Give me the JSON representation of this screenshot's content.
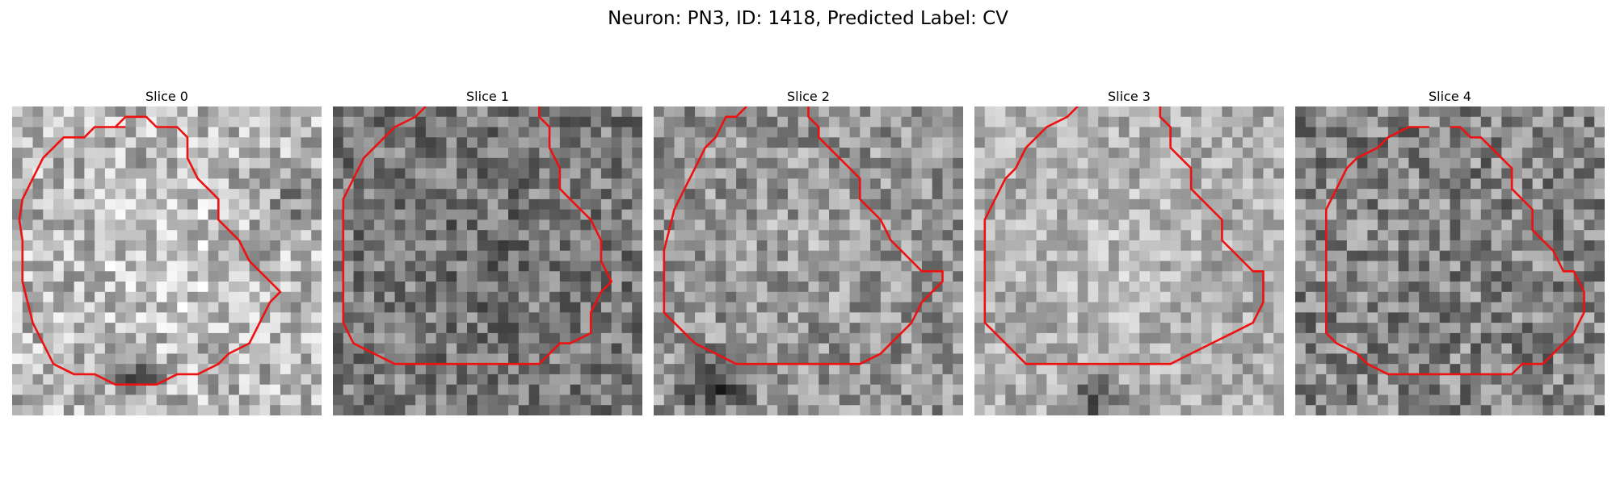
{
  "title": "Neuron: PN3, ID: 1418, Predicted Label: CV",
  "contour_color": "#ee1111",
  "panels": [
    {
      "label": "Slice 0",
      "brightness": 0.72,
      "contrast": 0.24,
      "seed": 11,
      "blobs": [
        [
          0.5,
          0.52,
          0.3,
          0.1
        ],
        [
          0.4,
          0.88,
          0.1,
          -0.45
        ],
        [
          0.92,
          0.3,
          0.18,
          -0.2
        ]
      ],
      "contour": [
        [
          11,
          2
        ],
        [
          8,
          2
        ],
        [
          7,
          3
        ],
        [
          5,
          3
        ],
        [
          4,
          4
        ],
        [
          3,
          5
        ],
        [
          2,
          7
        ],
        [
          1,
          9
        ],
        [
          0.7,
          11
        ],
        [
          1,
          13
        ],
        [
          1,
          15
        ],
        [
          1,
          17
        ],
        [
          1.5,
          19
        ],
        [
          2,
          21
        ],
        [
          3,
          23
        ],
        [
          4,
          25
        ],
        [
          6,
          26
        ],
        [
          8,
          26
        ],
        [
          10,
          27
        ],
        [
          12,
          27
        ],
        [
          14,
          27
        ],
        [
          16,
          26
        ],
        [
          18,
          26
        ],
        [
          20,
          25
        ],
        [
          21,
          24
        ],
        [
          23,
          23
        ],
        [
          24,
          21
        ],
        [
          25,
          19
        ],
        [
          26,
          18
        ],
        [
          25,
          17
        ],
        [
          24,
          16
        ],
        [
          23,
          15
        ],
        [
          22,
          13
        ],
        [
          21,
          12
        ],
        [
          20,
          11
        ],
        [
          20,
          9
        ],
        [
          19,
          8
        ],
        [
          18,
          7
        ],
        [
          17,
          5
        ],
        [
          17,
          3
        ],
        [
          16,
          2
        ],
        [
          14,
          2
        ],
        [
          13,
          1
        ],
        [
          11,
          1
        ],
        [
          10,
          2
        ]
      ]
    },
    {
      "label": "Slice 1",
      "brightness": 0.48,
      "contrast": 0.22,
      "seed": 23,
      "blobs": [
        [
          0.5,
          0.5,
          0.35,
          -0.05
        ]
      ],
      "contour": [
        [
          9,
          0
        ],
        [
          8,
          1
        ],
        [
          6,
          2
        ],
        [
          5,
          3
        ],
        [
          4,
          4
        ],
        [
          3,
          5
        ],
        [
          2,
          7
        ],
        [
          1,
          9
        ],
        [
          1,
          11
        ],
        [
          1,
          13
        ],
        [
          1,
          15
        ],
        [
          1,
          17
        ],
        [
          1,
          19
        ],
        [
          1,
          21
        ],
        [
          2,
          23
        ],
        [
          4,
          24
        ],
        [
          6,
          25
        ],
        [
          8,
          25
        ],
        [
          10,
          25
        ],
        [
          12,
          25
        ],
        [
          14,
          25
        ],
        [
          16,
          25
        ],
        [
          18,
          25
        ],
        [
          20,
          25
        ],
        [
          21,
          24
        ],
        [
          22,
          23
        ],
        [
          23,
          23
        ],
        [
          25,
          22
        ],
        [
          25,
          20
        ],
        [
          26,
          18
        ],
        [
          27,
          17
        ],
        [
          26,
          15
        ],
        [
          26,
          13
        ],
        [
          25,
          11
        ],
        [
          24,
          10
        ],
        [
          23,
          9
        ],
        [
          22,
          8
        ],
        [
          22,
          6
        ],
        [
          21,
          4
        ],
        [
          21,
          2
        ],
        [
          20,
          1
        ],
        [
          20,
          0
        ]
      ]
    },
    {
      "label": "Slice 2",
      "brightness": 0.58,
      "contrast": 0.22,
      "seed": 37,
      "blobs": [
        [
          0.52,
          0.45,
          0.35,
          0.06
        ],
        [
          0.2,
          0.9,
          0.15,
          -0.35
        ]
      ],
      "contour": [
        [
          9,
          0
        ],
        [
          8,
          1
        ],
        [
          7,
          1
        ],
        [
          6,
          3
        ],
        [
          5,
          4
        ],
        [
          4,
          6
        ],
        [
          3,
          8
        ],
        [
          2,
          10
        ],
        [
          1.5,
          12
        ],
        [
          1,
          14
        ],
        [
          1,
          16
        ],
        [
          1,
          18
        ],
        [
          1,
          20
        ],
        [
          2,
          21
        ],
        [
          4,
          23
        ],
        [
          6,
          24
        ],
        [
          8,
          25
        ],
        [
          10,
          25
        ],
        [
          12,
          25
        ],
        [
          14,
          25
        ],
        [
          16,
          25
        ],
        [
          18,
          25
        ],
        [
          20,
          25
        ],
        [
          22,
          24
        ],
        [
          23,
          23
        ],
        [
          24,
          22
        ],
        [
          25,
          21
        ],
        [
          26,
          19
        ],
        [
          27,
          18
        ],
        [
          28,
          17
        ],
        [
          28,
          16
        ],
        [
          26,
          16
        ],
        [
          25,
          15
        ],
        [
          24,
          14
        ],
        [
          23,
          13
        ],
        [
          22,
          11
        ],
        [
          21,
          10
        ],
        [
          20,
          9
        ],
        [
          20,
          7
        ],
        [
          19,
          6
        ],
        [
          18,
          5
        ],
        [
          17,
          4
        ],
        [
          16,
          3
        ],
        [
          16,
          2
        ],
        [
          15,
          1
        ],
        [
          15,
          0
        ]
      ]
    },
    {
      "label": "Slice 3",
      "brightness": 0.68,
      "contrast": 0.18,
      "seed": 51,
      "blobs": [
        [
          0.48,
          0.5,
          0.35,
          0.06
        ],
        [
          0.4,
          0.95,
          0.12,
          -0.4
        ]
      ],
      "contour": [
        [
          10,
          0
        ],
        [
          9,
          1
        ],
        [
          7,
          2
        ],
        [
          6,
          3
        ],
        [
          5,
          4
        ],
        [
          4,
          6
        ],
        [
          3,
          7
        ],
        [
          2,
          9
        ],
        [
          1,
          11
        ],
        [
          1,
          13
        ],
        [
          1,
          15
        ],
        [
          1,
          17
        ],
        [
          1,
          19
        ],
        [
          1,
          21
        ],
        [
          3,
          23
        ],
        [
          5,
          25
        ],
        [
          7,
          25
        ],
        [
          9,
          25
        ],
        [
          11,
          25
        ],
        [
          13,
          25
        ],
        [
          15,
          25
        ],
        [
          17,
          25
        ],
        [
          19,
          25
        ],
        [
          21,
          24
        ],
        [
          23,
          23
        ],
        [
          25,
          22
        ],
        [
          27,
          21
        ],
        [
          28,
          19
        ],
        [
          28,
          17
        ],
        [
          28,
          16
        ],
        [
          27,
          16
        ],
        [
          26,
          15
        ],
        [
          25,
          14
        ],
        [
          24,
          13
        ],
        [
          24,
          11
        ],
        [
          23,
          10
        ],
        [
          22,
          9
        ],
        [
          21,
          8
        ],
        [
          21,
          6
        ],
        [
          20,
          5
        ],
        [
          19,
          4
        ],
        [
          19,
          2
        ],
        [
          18,
          1
        ],
        [
          18,
          0
        ]
      ]
    },
    {
      "label": "Slice 4",
      "brightness": 0.52,
      "contrast": 0.24,
      "seed": 67,
      "blobs": [
        [
          0.5,
          0.5,
          0.3,
          0.0
        ]
      ],
      "contour": [
        [
          13,
          2
        ],
        [
          11,
          2
        ],
        [
          9,
          3
        ],
        [
          8,
          4
        ],
        [
          6,
          5
        ],
        [
          5,
          6
        ],
        [
          4,
          8
        ],
        [
          3,
          10
        ],
        [
          3,
          12
        ],
        [
          3,
          14
        ],
        [
          3,
          16
        ],
        [
          3,
          18
        ],
        [
          3,
          20
        ],
        [
          3,
          22
        ],
        [
          4,
          23
        ],
        [
          6,
          24
        ],
        [
          7,
          25
        ],
        [
          9,
          26
        ],
        [
          11,
          26
        ],
        [
          13,
          26
        ],
        [
          15,
          26
        ],
        [
          17,
          26
        ],
        [
          19,
          26
        ],
        [
          21,
          26
        ],
        [
          22,
          25
        ],
        [
          24,
          25
        ],
        [
          25,
          24
        ],
        [
          26,
          23
        ],
        [
          27,
          22
        ],
        [
          28,
          20
        ],
        [
          28,
          18
        ],
        [
          27,
          16
        ],
        [
          26,
          16
        ],
        [
          25,
          14
        ],
        [
          24,
          13
        ],
        [
          23,
          12
        ],
        [
          23,
          10
        ],
        [
          22,
          9
        ],
        [
          21,
          8
        ],
        [
          21,
          6
        ],
        [
          20,
          5
        ],
        [
          19,
          4
        ],
        [
          18,
          3
        ],
        [
          17,
          3
        ],
        [
          16,
          2
        ],
        [
          15,
          2
        ]
      ]
    }
  ]
}
